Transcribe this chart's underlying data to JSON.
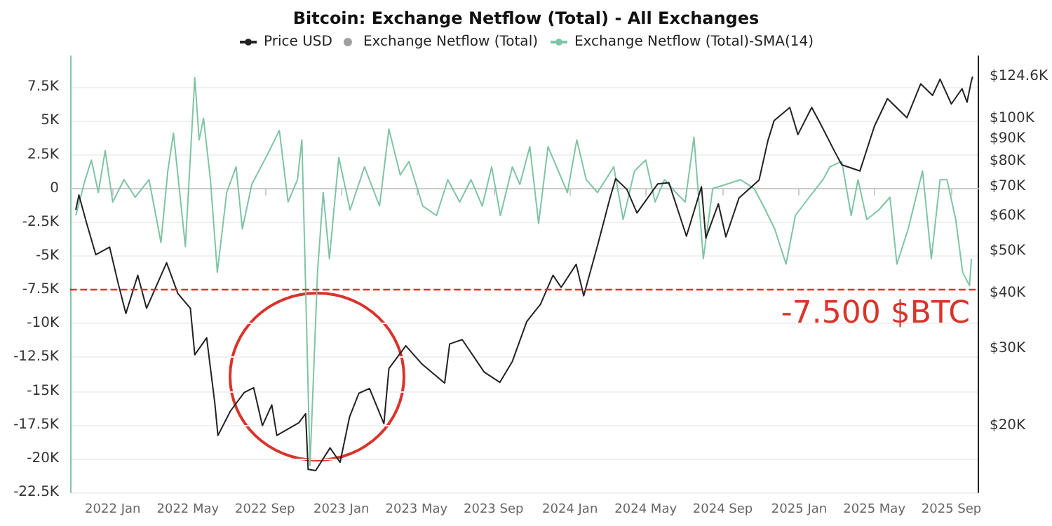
{
  "chart_data": {
    "type": "line",
    "title": "Bitcoin: Exchange Netflow (Total) - All Exchanges",
    "legend": "top",
    "grid": "y",
    "log": "y2",
    "marker": "none",
    "line_style": "solid",
    "xlim": [
      "2021-10-25",
      "2025-10-14"
    ],
    "xticks": [
      {
        "value": "2022-01-01",
        "label": "2022 Jan"
      },
      {
        "value": "2022-05-01",
        "label": "2022 May"
      },
      {
        "value": "2022-09-01",
        "label": "2022 Sep"
      },
      {
        "value": "2023-01-01",
        "label": "2023 Jan"
      },
      {
        "value": "2023-05-01",
        "label": "2023 May"
      },
      {
        "value": "2023-09-01",
        "label": "2023 Sep"
      },
      {
        "value": "2024-01-01",
        "label": "2024 Jan"
      },
      {
        "value": "2024-05-01",
        "label": "2024 May"
      },
      {
        "value": "2024-09-01",
        "label": "2024 Sep"
      },
      {
        "value": "2025-01-01",
        "label": "2025 Jan"
      },
      {
        "value": "2025-05-01",
        "label": "2025 May"
      },
      {
        "value": "2025-09-01",
        "label": "2025 Sep"
      }
    ],
    "ylim": [
      -22500,
      9800
    ],
    "yticks": [
      {
        "value": 7500,
        "label": "7.5K"
      },
      {
        "value": 5000,
        "label": "5K"
      },
      {
        "value": 2500,
        "label": "2.5K"
      },
      0,
      {
        "value": -2500,
        "label": "-2.5K"
      },
      {
        "value": -5000,
        "label": "-5K"
      },
      {
        "value": -7500,
        "label": "-7.5K"
      },
      {
        "value": -10000,
        "label": "-10K"
      },
      {
        "value": -12500,
        "label": "-12.5K"
      },
      {
        "value": -15000,
        "label": "-15K"
      },
      {
        "value": -17500,
        "label": "-17.5K"
      },
      {
        "value": -20000,
        "label": "-20K"
      },
      {
        "value": -22500,
        "label": "-22.5K"
      }
    ],
    "y2lim": [
      14100,
      138800
    ],
    "y2ticks": [
      {
        "value": 20000,
        "label": "$20K"
      },
      {
        "value": 30000,
        "label": "$30K"
      },
      {
        "value": 40000,
        "label": "$40K"
      },
      {
        "value": 50000,
        "label": "$50K"
      },
      {
        "value": 60000,
        "label": "$60K"
      },
      {
        "value": 70000,
        "label": "$70K"
      },
      {
        "value": 80000,
        "label": "$80K"
      },
      {
        "value": 90000,
        "label": "$90K"
      },
      {
        "value": 100000,
        "label": "$100K"
      },
      {
        "value": 124600,
        "label": "$124.6K"
      }
    ],
    "ref_lines": [
      {
        "axis": "y",
        "value": -7500,
        "label": "-7.500 $BTC",
        "color": "#d9342b",
        "line_style": "dashed"
      }
    ],
    "series": [
      {
        "name": "Price USD",
        "color": "#222222",
        "axis": "y2",
        "x": [
          "2021-11-03",
          "2021-11-08",
          "2021-11-20",
          "2021-12-05",
          "2021-12-27",
          "2022-01-10",
          "2022-01-22",
          "2022-02-10",
          "2022-02-24",
          "2022-03-28",
          "2022-04-15",
          "2022-05-05",
          "2022-05-12",
          "2022-05-31",
          "2022-06-13",
          "2022-06-18",
          "2022-07-08",
          "2022-07-30",
          "2022-08-14",
          "2022-08-28",
          "2022-09-12",
          "2022-09-20",
          "2022-10-25",
          "2022-11-05",
          "2022-11-09",
          "2022-11-21",
          "2022-12-14",
          "2022-12-30",
          "2023-01-14",
          "2023-01-29",
          "2023-02-15",
          "2023-03-10",
          "2023-03-18",
          "2023-04-14",
          "2023-05-10",
          "2023-06-15",
          "2023-06-23",
          "2023-07-13",
          "2023-08-17",
          "2023-09-11",
          "2023-10-01",
          "2023-10-24",
          "2023-11-15",
          "2023-12-05",
          "2023-12-18",
          "2024-01-11",
          "2024-01-23",
          "2024-02-15",
          "2024-03-05",
          "2024-03-14",
          "2024-04-01",
          "2024-04-17",
          "2024-05-20",
          "2024-06-07",
          "2024-07-05",
          "2024-07-29",
          "2024-08-05",
          "2024-08-25",
          "2024-09-06",
          "2024-09-27",
          "2024-10-29",
          "2024-11-12",
          "2024-11-22",
          "2024-12-17",
          "2024-12-30",
          "2025-01-21",
          "2025-02-03",
          "2025-02-27",
          "2025-03-10",
          "2025-04-08",
          "2025-05-01",
          "2025-05-22",
          "2025-06-22",
          "2025-07-14",
          "2025-08-02",
          "2025-08-14",
          "2025-09-01",
          "2025-09-18",
          "2025-09-26",
          "2025-10-03",
          "2025-10-05"
        ],
        "values": [
          62000,
          67000,
          58000,
          49000,
          51000,
          42000,
          36000,
          44000,
          37000,
          47000,
          40000,
          37000,
          29000,
          31700,
          22500,
          19000,
          21600,
          23800,
          24400,
          20000,
          22300,
          19000,
          20300,
          21300,
          15900,
          15800,
          17800,
          16500,
          20900,
          23700,
          24300,
          20200,
          27000,
          30400,
          27600,
          25000,
          30700,
          31400,
          26500,
          25100,
          28000,
          34500,
          37800,
          44000,
          41300,
          46600,
          39500,
          52000,
          66000,
          73000,
          69000,
          61000,
          71000,
          71500,
          54000,
          70000,
          53500,
          64000,
          53800,
          66000,
          72500,
          89000,
          99000,
          106000,
          92000,
          106000,
          98000,
          84000,
          78500,
          76000,
          96000,
          111000,
          100500,
          120000,
          113000,
          123000,
          108000,
          117000,
          109000,
          122000,
          124600
        ]
      },
      {
        "name": "Exchange Netflow (Total)",
        "color": "#888888",
        "type": "scatter"
      },
      {
        "name": "Exchange Netflow (Total)-SMA(14)",
        "color": "#7fc4a4",
        "x": [
          "2021-11-03",
          "2021-11-18",
          "2021-11-28",
          "2021-12-09",
          "2021-12-20",
          "2022-01-01",
          "2022-01-19",
          "2022-02-06",
          "2022-02-28",
          "2022-03-19",
          "2022-03-30",
          "2022-04-08",
          "2022-04-27",
          "2022-05-12",
          "2022-05-19",
          "2022-05-26",
          "2022-06-06",
          "2022-06-17",
          "2022-07-02",
          "2022-07-17",
          "2022-07-27",
          "2022-08-11",
          "2022-09-06",
          "2022-09-24",
          "2022-10-08",
          "2022-10-23",
          "2022-10-30",
          "2022-11-03",
          "2022-11-12",
          "2022-11-24",
          "2022-12-03",
          "2022-12-13",
          "2022-12-28",
          "2023-01-15",
          "2023-02-07",
          "2023-03-03",
          "2023-03-18",
          "2023-04-05",
          "2023-04-19",
          "2023-05-11",
          "2023-06-02",
          "2023-06-20",
          "2023-07-09",
          "2023-07-27",
          "2023-08-14",
          "2023-08-29",
          "2023-09-12",
          "2023-10-01",
          "2023-10-13",
          "2023-10-29",
          "2023-11-12",
          "2023-11-27",
          "2023-12-28",
          "2024-01-12",
          "2024-01-27",
          "2024-02-14",
          "2024-03-11",
          "2024-03-26",
          "2024-04-13",
          "2024-05-01",
          "2024-05-16",
          "2024-05-31",
          "2024-06-18",
          "2024-07-03",
          "2024-07-17",
          "2024-08-01",
          "2024-08-16",
          "2024-09-06",
          "2024-09-29",
          "2024-10-21",
          "2024-11-05",
          "2024-11-23",
          "2024-12-11",
          "2024-12-26",
          "2025-01-17",
          "2025-02-08",
          "2025-02-19",
          "2025-03-10",
          "2025-03-25",
          "2025-04-05",
          "2025-04-19",
          "2025-05-08",
          "2025-05-26",
          "2025-06-06",
          "2025-06-24",
          "2025-07-17",
          "2025-07-31",
          "2025-08-14",
          "2025-08-25",
          "2025-09-08",
          "2025-09-19",
          "2025-09-30",
          "2025-10-03"
        ],
        "values": [
          -2000,
          650,
          2100,
          -300,
          2800,
          -1000,
          650,
          -650,
          650,
          -4000,
          1300,
          4100,
          -4300,
          8200,
          3600,
          5200,
          650,
          -6200,
          -300,
          1600,
          -3000,
          300,
          2600,
          4300,
          -1000,
          650,
          3600,
          -3600,
          -20500,
          -6200,
          -300,
          -5200,
          2300,
          -1600,
          1600,
          -1300,
          4400,
          1000,
          2000,
          -1300,
          -2000,
          650,
          -1000,
          650,
          -1300,
          1600,
          -2000,
          1600,
          300,
          3100,
          -2600,
          3100,
          -300,
          3600,
          650,
          -300,
          1600,
          -2300,
          1300,
          2100,
          -1000,
          650,
          -300,
          -1000,
          3800,
          -5200,
          0,
          300,
          650,
          0,
          -1300,
          -3000,
          -5600,
          -2000,
          -650,
          650,
          1600,
          2000,
          -2000,
          650,
          -2300,
          -1600,
          -650,
          -5600,
          -3000,
          1300,
          -5200,
          650,
          650,
          -2300,
          -6200,
          -7200,
          -5200
        ]
      }
    ]
  }
}
